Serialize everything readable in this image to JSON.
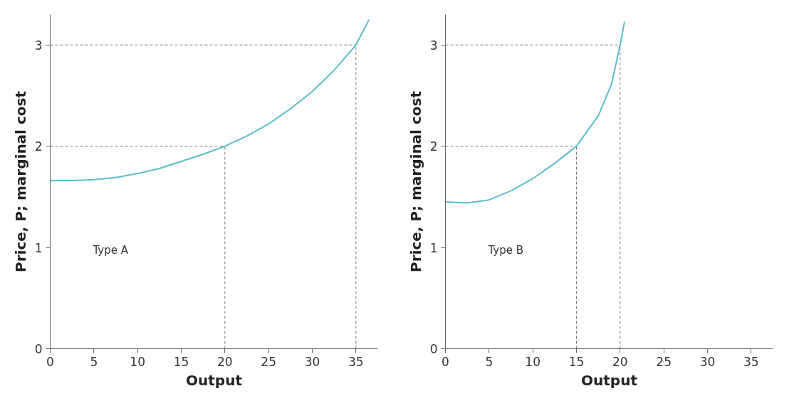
{
  "chart_data": [
    {
      "type": "line",
      "xlabel": "Output",
      "ylabel": "Price, P; marginal cost",
      "annotations": [
        "Type A"
      ],
      "series": [
        {
          "color": "#5bbccc",
          "x": [
            0,
            2.5,
            5,
            7.5,
            10,
            12.5,
            15,
            17.5,
            20,
            22.5,
            25,
            27.5,
            30,
            32.5,
            35,
            36.5
          ],
          "values": [
            1.66,
            1.66,
            1.67,
            1.69,
            1.73,
            1.78,
            1.85,
            1.92,
            2.0,
            2.1,
            2.22,
            2.37,
            2.54,
            2.75,
            3.0,
            3.25
          ]
        }
      ],
      "xlim": [
        0,
        37.5
      ],
      "ylim": [
        0,
        3.3
      ],
      "xticks": [
        0,
        5,
        10,
        15,
        20,
        25,
        30,
        35
      ],
      "yticks": [
        0,
        1,
        2,
        3
      ],
      "ref_lines": [
        {
          "axis": "y",
          "value": 2,
          "line_style": "dashed",
          "color": "#777777"
        },
        {
          "axis": "y",
          "value": 3,
          "line_style": "dashed",
          "color": "#777777"
        },
        {
          "axis": "x",
          "value": 20,
          "line_style": "dashed",
          "color": "#777777"
        },
        {
          "axis": "x",
          "value": 35,
          "line_style": "dashed",
          "color": "#777777"
        }
      ],
      "grid": false
    },
    {
      "type": "line",
      "xlabel": "Output",
      "ylabel": "Price, P; marginal cost",
      "annotations": [
        "Type B"
      ],
      "series": [
        {
          "color": "#5bbccc",
          "x": [
            0,
            2.5,
            5,
            7.5,
            10,
            12.5,
            15,
            17.5,
            19,
            20,
            20.5
          ],
          "values": [
            1.45,
            1.44,
            1.47,
            1.56,
            1.68,
            1.83,
            2.0,
            2.3,
            2.61,
            3.0,
            3.23
          ]
        }
      ],
      "xlim": [
        0,
        37.5
      ],
      "ylim": [
        0,
        3.3
      ],
      "xticks": [
        0,
        5,
        10,
        15,
        20,
        25,
        30,
        35
      ],
      "yticks": [
        0,
        1,
        2,
        3
      ],
      "ref_lines": [
        {
          "axis": "y",
          "value": 2,
          "line_style": "dashed",
          "color": "#777777"
        },
        {
          "axis": "y",
          "value": 3,
          "line_style": "dashed",
          "color": "#777777"
        },
        {
          "axis": "x",
          "value": 15,
          "line_style": "dashed",
          "color": "#777777"
        },
        {
          "axis": "x",
          "value": 20,
          "line_style": "dashed",
          "color": "#777777"
        }
      ],
      "grid": false
    }
  ]
}
